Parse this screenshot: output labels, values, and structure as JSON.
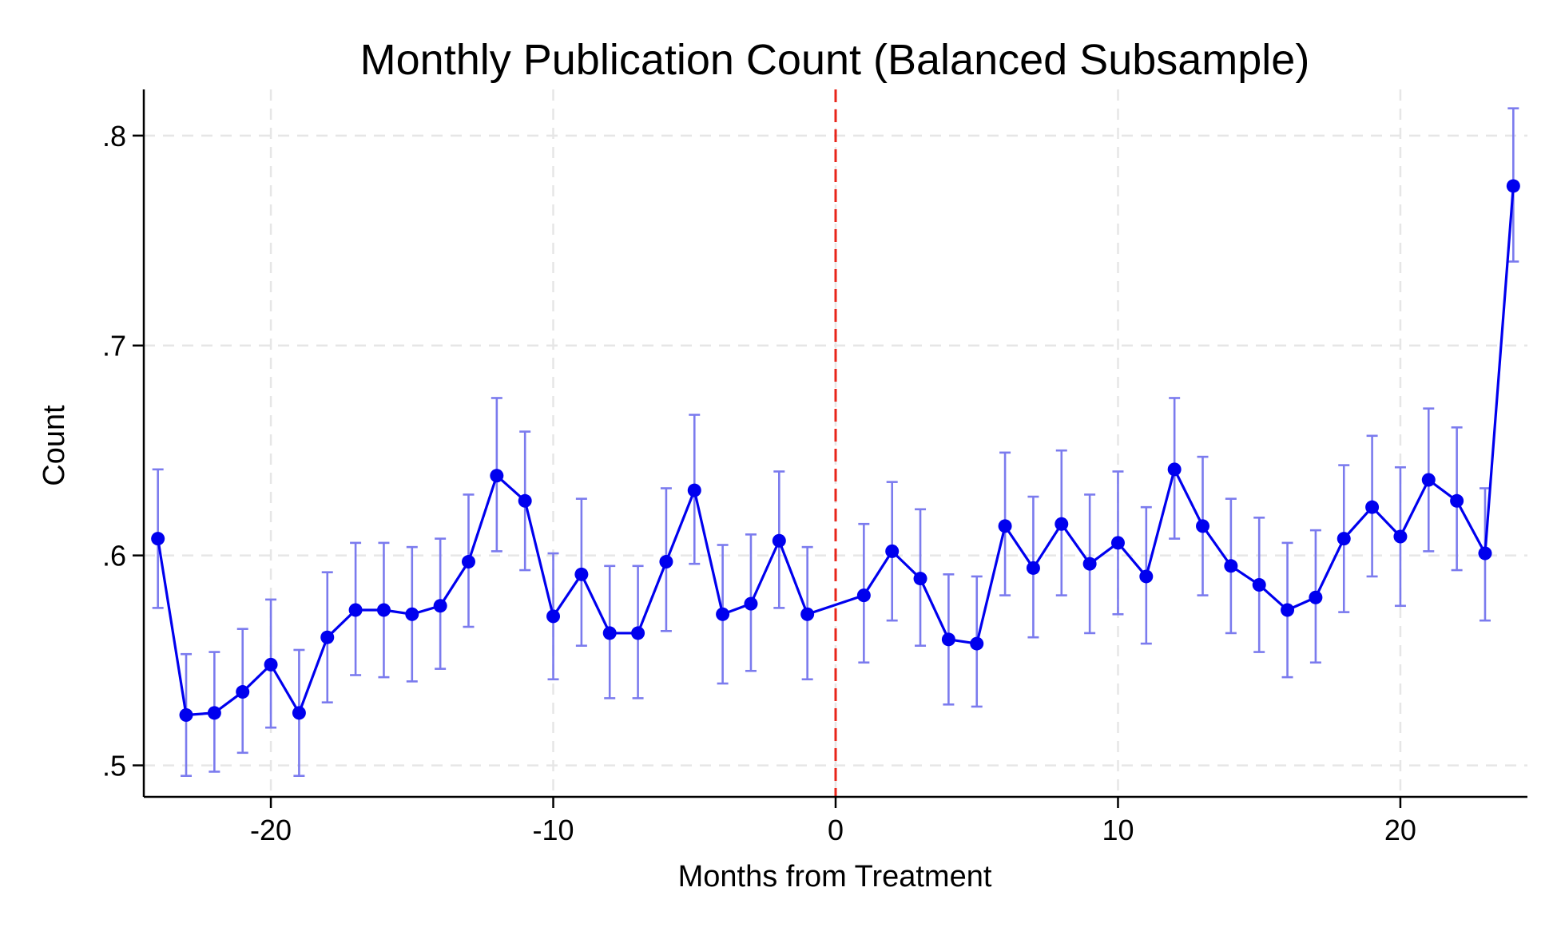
{
  "chart_data": {
    "type": "line",
    "title": "Monthly Publication Count (Balanced Subsample)",
    "xlabel": "Months from Treatment",
    "ylabel": "Count",
    "xlim": [
      -24.5,
      24.5
    ],
    "ylim": [
      0.485,
      0.822
    ],
    "xticks": [
      -20,
      -10,
      0,
      10,
      20
    ],
    "xtick_labels": [
      "-20",
      "-10",
      "0",
      "10",
      "20"
    ],
    "yticks": [
      0.5,
      0.6,
      0.7,
      0.8
    ],
    "ytick_labels": [
      ".5",
      ".6",
      ".7",
      ".8"
    ],
    "grid": true,
    "reference_line": {
      "x": 0,
      "color": "#e8251a",
      "style": "dashed"
    },
    "colors": {
      "line": "#0000ee",
      "marker": "#0000ee",
      "errorbar": "#7b7bee"
    },
    "series": [
      {
        "x": [
          -24,
          -23,
          -22,
          -21,
          -20,
          -19,
          -18,
          -17,
          -16,
          -15,
          -14,
          -13,
          -12,
          -11,
          -10,
          -9,
          -8,
          -7,
          -6,
          -5,
          -4,
          -3,
          -2,
          -1,
          1,
          2,
          3,
          4,
          5,
          6,
          7,
          8,
          9,
          10,
          11,
          12,
          13,
          14,
          15,
          16,
          17,
          18,
          19,
          20,
          21,
          22,
          23,
          24
        ],
        "values": [
          0.608,
          0.524,
          0.525,
          0.535,
          0.548,
          0.525,
          0.561,
          0.574,
          0.574,
          0.572,
          0.576,
          0.597,
          0.638,
          0.626,
          0.571,
          0.591,
          0.563,
          0.563,
          0.597,
          0.631,
          0.572,
          0.577,
          0.607,
          0.572,
          0.581,
          0.602,
          0.589,
          0.56,
          0.558,
          0.614,
          0.594,
          0.615,
          0.596,
          0.606,
          0.59,
          0.641,
          0.614,
          0.595,
          0.586,
          0.574,
          0.58,
          0.608,
          0.623,
          0.609,
          0.636,
          0.626,
          0.601,
          0.776
        ],
        "ci_lower": [
          0.575,
          0.495,
          0.497,
          0.506,
          0.518,
          0.495,
          0.53,
          0.543,
          0.542,
          0.54,
          0.546,
          0.566,
          0.602,
          0.593,
          0.541,
          0.557,
          0.532,
          0.532,
          0.564,
          0.596,
          0.539,
          0.545,
          0.575,
          0.541,
          0.549,
          0.569,
          0.557,
          0.529,
          0.528,
          0.581,
          0.561,
          0.581,
          0.563,
          0.572,
          0.558,
          0.608,
          0.581,
          0.563,
          0.554,
          0.542,
          0.549,
          0.573,
          0.59,
          0.576,
          0.602,
          0.593,
          0.569,
          0.74
        ],
        "ci_upper": [
          0.641,
          0.553,
          0.554,
          0.565,
          0.579,
          0.555,
          0.592,
          0.606,
          0.606,
          0.604,
          0.608,
          0.629,
          0.675,
          0.659,
          0.601,
          0.627,
          0.595,
          0.595,
          0.632,
          0.667,
          0.605,
          0.61,
          0.64,
          0.604,
          0.615,
          0.635,
          0.622,
          0.591,
          0.59,
          0.649,
          0.628,
          0.65,
          0.629,
          0.64,
          0.623,
          0.675,
          0.647,
          0.627,
          0.618,
          0.606,
          0.612,
          0.643,
          0.657,
          0.642,
          0.67,
          0.661,
          0.632,
          0.813
        ]
      }
    ]
  }
}
